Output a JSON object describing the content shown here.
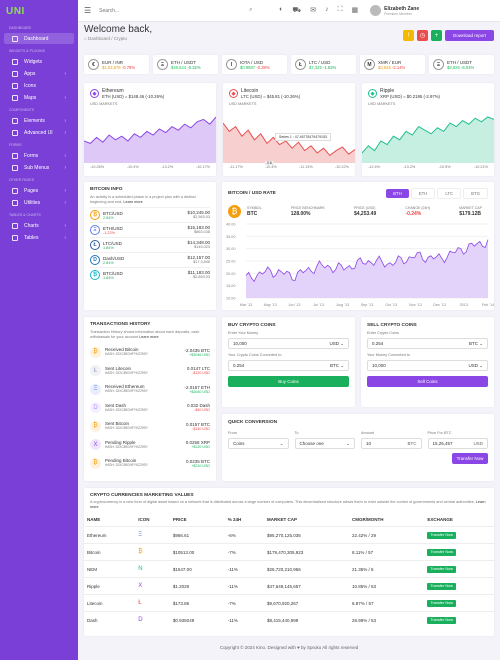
{
  "brand": {
    "logo": "UNI"
  },
  "sidebar": {
    "sections": [
      {
        "title": "Dashboard",
        "items": [
          {
            "label": "Dashboard",
            "active": true
          }
        ]
      },
      {
        "title": "Widgets & Plugins",
        "items": [
          {
            "label": "Widgets"
          },
          {
            "label": "Apps",
            "chev": true
          },
          {
            "label": "Icons"
          },
          {
            "label": "Maps",
            "chev": true
          }
        ]
      },
      {
        "title": "Components",
        "items": [
          {
            "label": "Elements",
            "chev": true
          },
          {
            "label": "Advanced UI",
            "chev": true
          }
        ]
      },
      {
        "title": "Forms",
        "items": [
          {
            "label": "Forms",
            "chev": true
          },
          {
            "label": "Sub Menus",
            "chev": true
          }
        ]
      },
      {
        "title": "Other Pages",
        "items": [
          {
            "label": "Pages",
            "chev": true
          },
          {
            "label": "Utilities",
            "chev": true
          }
        ]
      },
      {
        "title": "Tables & Charts",
        "items": [
          {
            "label": "Charts",
            "chev": true
          },
          {
            "label": "Tables",
            "chev": true
          }
        ]
      }
    ]
  },
  "topbar": {
    "search_placeholder": "Search...",
    "user": {
      "name": "Elizabeth Zane",
      "role": "Premium Member"
    }
  },
  "header": {
    "title": "Welcome back,",
    "breadcrumb": "Dashboard / Crypto",
    "download": "Download report"
  },
  "tickers": [
    {
      "pair": "EUR / INR",
      "price": "$1.03,876",
      "change": "-0.78%",
      "color": "#f59e0b",
      "icon": "€"
    },
    {
      "pair": "ETH / USDT",
      "price": "$49,824",
      "change": "-0.32%",
      "color": "#22c55e",
      "icon": "Ξ"
    },
    {
      "pair": "IOTA / USD",
      "price": "$0.9887",
      "change": "-0.38%",
      "color": "#22c55e",
      "icon": "I"
    },
    {
      "pair": "LTC / USD",
      "price": "$7,325",
      "change": "-1.92%",
      "color": "#22c55e",
      "icon": "Ł"
    },
    {
      "pair": "XMR / EUR",
      "price": "$3,826",
      "change": "-2.14%",
      "color": "#f59e0b",
      "icon": "M"
    },
    {
      "pair": "ETH / USDT",
      "price": "$8,826",
      "change": "-6.04%",
      "color": "#22c55e",
      "icon": "Ξ"
    }
  ],
  "mini": [
    {
      "name": "Ethereum",
      "value": "ETH (USD) = $148.46 (-10.26%)",
      "usd": "USD MARKETS",
      "color": "#8b47e6",
      "fill": "#ddc8f7",
      "ticks": [
        "-10.26%",
        "-10.4%",
        "-13.2%",
        "-10.17%"
      ]
    },
    {
      "name": "Litecoin",
      "value": "LTC (USD) = $45.81 (-10.26%)",
      "usd": "USD MARKETS",
      "color": "#e94e4e",
      "fill": "#f7cfcf",
      "ticks": [
        "-11.17%",
        "-10.4%",
        "-11.13%",
        "-10.22%"
      ],
      "tooltip": "Series 1 : 47.46778479479153",
      "tip_label": "0.6"
    },
    {
      "name": "Ripple",
      "value": "XRP (USD) = $0.2195 (-2.97%)",
      "usd": "USD MARKETS",
      "color": "#1fbf8f",
      "fill": "#c7efe1",
      "ticks": [
        "-12.4%",
        "-13.2%",
        "-10.5%",
        "-10.21%"
      ]
    }
  ],
  "info": {
    "title": "Bitcoin Info",
    "desc": "An activity is a scheduled phase in a project plan with a distinct beginning and end.",
    "learn": "Learn more",
    "rows": [
      {
        "sym": "BTC/USD",
        "chg": "2.84%",
        "up": true,
        "val": "$10,245.00",
        "sub": "$2,563.03",
        "col": "#f59e0b",
        "ic": "₿"
      },
      {
        "sym": "ETH/USD",
        "chg": "-1.22%",
        "up": false,
        "val": "$15,183.00",
        "sub": "$863.038",
        "col": "#627eea",
        "ic": "Ξ"
      },
      {
        "sym": "LTC/USD",
        "chg": "1.84%",
        "up": true,
        "val": "$14,348.00",
        "sub": "$145.023",
        "col": "#345d9d",
        "ic": "Ł"
      },
      {
        "sym": "Dash/USD",
        "chg": "2.84%",
        "up": true,
        "val": "$12,157.00",
        "sub": "$17.3,846",
        "col": "#1c75bc",
        "ic": "D"
      },
      {
        "sym": "BTC/USD",
        "chg": "1.84%",
        "up": true,
        "val": "$11,183.00",
        "sub": "$2,853.03",
        "col": "#16b5c7",
        "ic": "₿"
      }
    ]
  },
  "btc": {
    "title": "Bitcoin / USD Rate",
    "tabs": [
      "BTH",
      "ETH",
      "LTC",
      "BTG"
    ],
    "symbol_label": "SYMBOL",
    "symbol": "BTC",
    "bench_label": "PRICE BENCHMARK",
    "bench": "128.00%",
    "price_label": "PRICE (USD)",
    "price": "$4,253.49",
    "change_label": "CHANGE (24H)",
    "change": "-0.24%",
    "cap_label": "MARKET CAP",
    "cap": "$179.12B",
    "yticks": [
      "40.00",
      "35.00",
      "30.00",
      "25.00",
      "20.00",
      "15.00",
      "10.00"
    ],
    "xticks": [
      "Mar '13",
      "May '13",
      "Jun '13",
      "Jul '13",
      "Aug '13",
      "Sep '13",
      "Oct '13",
      "Nov '13",
      "Dec '13",
      "2013",
      "Feb '14"
    ]
  },
  "chart_data": {
    "type": "area",
    "title": "BITCOIN / USD RATE",
    "ylim": [
      10,
      40
    ],
    "x": [
      "Mar '13",
      "May '13",
      "Jun '13",
      "Jul '13",
      "Aug '13",
      "Sep '13",
      "Oct '13",
      "Nov '13",
      "Dec '13",
      "2013",
      "Feb '14"
    ],
    "series": [
      {
        "values": [
          18,
          21,
          19,
          23,
          22,
          25,
          24,
          27,
          26,
          30,
          33
        ]
      }
    ]
  },
  "tx": {
    "title": "Transactions History",
    "desc": "Transaction History shows information about each deposits, cash withdrawals for your account",
    "learn": "Learn more",
    "rows": [
      {
        "name": "Received Bitcoin",
        "hash": "HASH: 32XC89GHFYKZ29SY",
        "amt": "-2.0435 BTC",
        "usd": "+$3046 USD",
        "col": "#f59e0b",
        "ic": "₿"
      },
      {
        "name": "Sent Litecoin",
        "hash": "HASH: 32XC89GHFYKZ29SY",
        "amt": "0.0147 LTC",
        "usd": "-$120 USD",
        "col": "#8e9bbf",
        "ic": "Ł"
      },
      {
        "name": "Received Ethereum",
        "hash": "HASH: 32XC89GHFYKZ29SY",
        "amt": "-2.0157 ETH",
        "usd": "+$3040 USD",
        "col": "#627eea",
        "ic": "Ξ"
      },
      {
        "name": "Sent Dash",
        "hash": "HASH: 32XC89GHFYKZ29SY",
        "amt": "0.032 Dash",
        "usd": "-$40 USD",
        "col": "#b388ff",
        "ic": "D"
      },
      {
        "name": "Sent Bitcoin",
        "hash": "HASH: 32XC89GHFYKZ29SY",
        "amt": "0.0157 BTC",
        "usd": "-$140 USD",
        "col": "#f59e0b",
        "ic": "₿"
      },
      {
        "name": "Pending Ripple",
        "hash": "HASH: 32XC89GHFYKZ29SY",
        "amt": "0.0258 XRP",
        "usd": "+$120 USD",
        "col": "#8b47e6",
        "ic": "X"
      },
      {
        "name": "Pending Bitcoin",
        "hash": "HASH: 32XC89GHFYKZ29SY",
        "amt": "0.0235 BTC",
        "usd": "+$210 USD",
        "col": "#f59e0b",
        "ic": "₿"
      }
    ]
  },
  "buy": {
    "title": "Buy Crypto Coins",
    "money_label": "Enter Your Money",
    "money": "10,000",
    "money_cur": "USD",
    "out_label": "Your Crypto Coins Converted to",
    "out": "0.254",
    "out_cur": "BTC",
    "btn": "Buy Coins"
  },
  "sell": {
    "title": "Sell Crypto Coins",
    "coins_label": "Enter Crypto Coins",
    "coins": "0.254",
    "coins_cur": "BTC",
    "out_label": "Your Money Converted to",
    "out": "10,000",
    "out_cur": "USD",
    "btn": "Sell Coins"
  },
  "qc": {
    "title": "Quick Conversion",
    "from_label": "From",
    "from": "Coins",
    "to_label": "To",
    "to": "Choose one",
    "amount_label": "Amount",
    "amount": "10",
    "amount_cur": "BTC",
    "price_label": "Price For BTC",
    "price": "15,25,457",
    "price_cur": "USD",
    "btn": "Transfer Now"
  },
  "mv": {
    "title": "Crypto Currencies Marketing Values",
    "desc": "A cryptocurrency is a new form of digital asset based on a network that is distributed across a large number of computers. This decentralized structure allows them to exist outside the control of governments and central authorities.",
    "learn": "Learn more",
    "headers": [
      "NAME",
      "ICON",
      "PRICE",
      "% 24H",
      "MARKET CAP",
      "CMGR/MONTH",
      "EXCHANGE"
    ],
    "rows": [
      {
        "name": "Ethereum",
        "price": "$966.61",
        "pct": "-6%",
        "cap": "$95,270,125,036",
        "cmgr": "22.42% / 29",
        "col": "#627eea",
        "ic": "Ξ"
      },
      {
        "name": "Bitcoin",
        "price": "$10513.00",
        "pct": "-7%",
        "cap": "$179,470,305,923",
        "cmgr": "8.11% / 57",
        "col": "#f59e0b",
        "ic": "₿"
      },
      {
        "name": "NEM",
        "price": "$1547.00",
        "pct": "-11%",
        "cap": "$26,720,210,956",
        "cmgr": "21.35% / 6",
        "col": "#1fbf8f",
        "ic": "N"
      },
      {
        "name": "Ripple",
        "price": "$1.2029",
        "pct": "-11%",
        "cap": "$47,649,145,657",
        "cmgr": "10.85% / 53",
        "col": "#8b47e6",
        "ic": "X"
      },
      {
        "name": "Litecoin",
        "price": "$173.86",
        "pct": "-7%",
        "cap": "$9,670,920,267",
        "cmgr": "6.87% / 57",
        "col": "#e94e4e",
        "ic": "Ł"
      },
      {
        "name": "Dash",
        "price": "$0.935049",
        "pct": "-11%",
        "cap": "$8,415,440,999",
        "cmgr": "26.99% / 53",
        "col": "#8b47e6",
        "ic": "D"
      }
    ],
    "btn": "Transfer Now"
  },
  "footer": "Copyright © 2024 Kino. Designed with ♥ by Spruko All rights reserved"
}
